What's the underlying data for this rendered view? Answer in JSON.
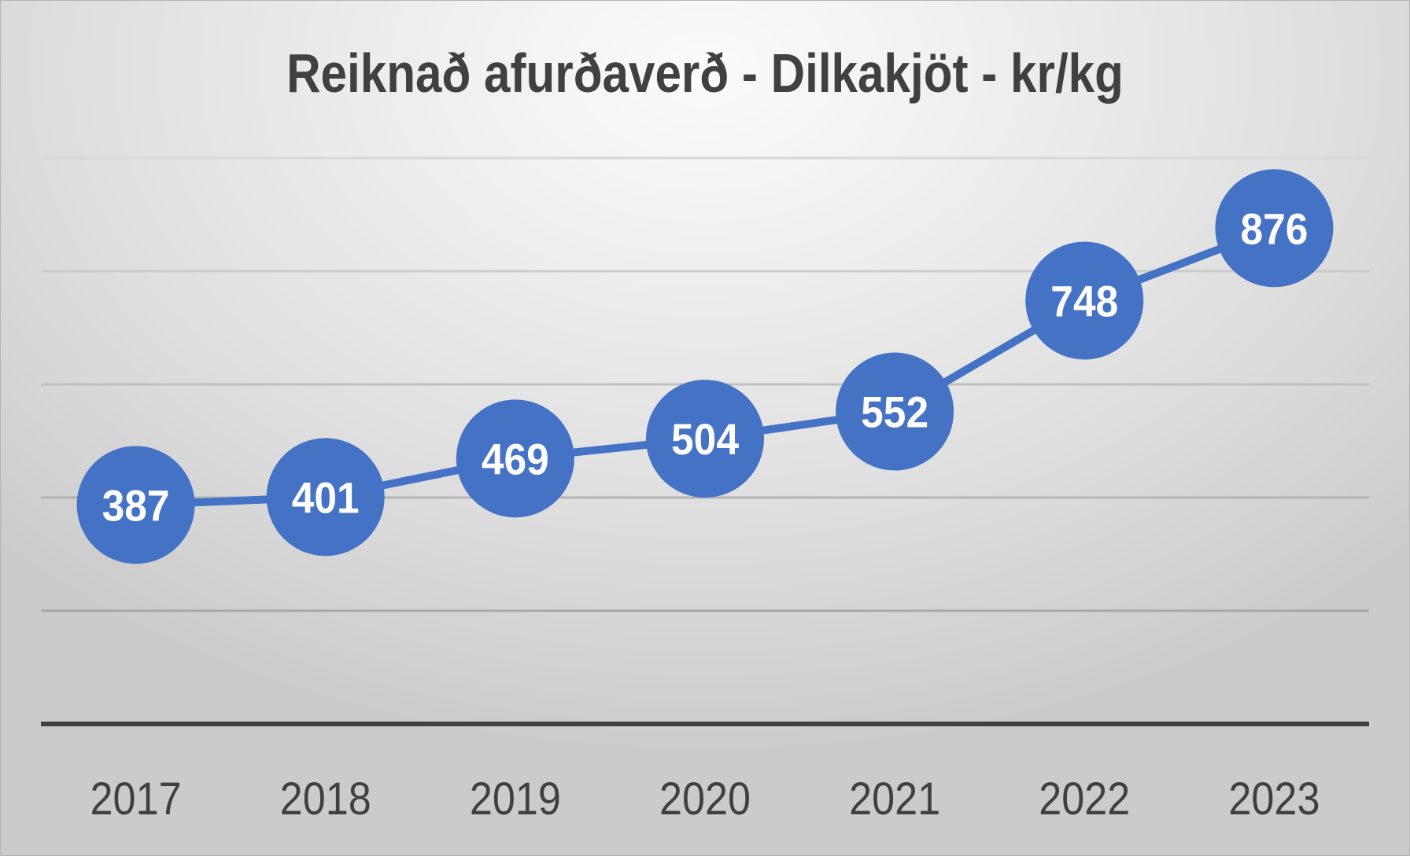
{
  "chart_data": {
    "type": "line",
    "title": "Reiknað afurðaverð - Dilkakjöt - kr/kg",
    "xlabel": "",
    "ylabel": "",
    "categories": [
      "2017",
      "2018",
      "2019",
      "2020",
      "2021",
      "2022",
      "2023"
    ],
    "series": [
      {
        "name": "Reiknað afurðaverð",
        "values": [
          387,
          401,
          469,
          504,
          552,
          748,
          876
        ]
      }
    ],
    "ylim": [
      0,
      1000
    ],
    "y_gridlines": [
      200,
      400,
      600,
      800,
      1000
    ],
    "grid": true,
    "legend": "none",
    "data_labels": true,
    "marker": "circle",
    "colors": {
      "series": "#4472C4",
      "text": "#404040",
      "axis": "#404040",
      "grid": "#bfbfbf"
    }
  }
}
